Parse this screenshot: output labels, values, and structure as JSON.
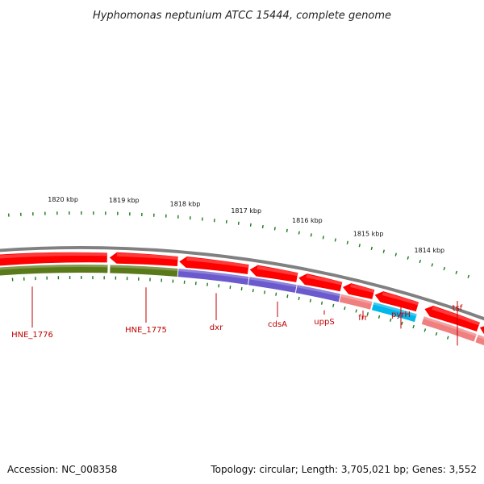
{
  "title": "Hyphomonas neptunium ATCC 15444, complete genome",
  "accession": "Accession: NC_008358",
  "topology": "Topology: circular; Length: 3,705,021 bp; Genes: 3,552",
  "kbp_ticks": [
    {
      "kb": 1820,
      "label": "1820 kbp"
    },
    {
      "kb": 1819,
      "label": "1819 kbp"
    },
    {
      "kb": 1818,
      "label": "1818 kbp"
    },
    {
      "kb": 1817,
      "label": "1817 kbp"
    },
    {
      "kb": 1816,
      "label": "1816 kbp"
    },
    {
      "kb": 1815,
      "label": "1815 kbp"
    },
    {
      "kb": 1814,
      "label": "1814 kbp"
    }
  ],
  "genes": [
    {
      "name": "HNE_1776"
    },
    {
      "name": "HNE_1775"
    },
    {
      "name": "dxr"
    },
    {
      "name": "cdsA"
    },
    {
      "name": "uppS"
    },
    {
      "name": "frr"
    },
    {
      "name": "pyrH"
    },
    {
      "name": "tsf"
    }
  ],
  "colors": {
    "cds": "#ff0000",
    "cds_light": "#f08080",
    "backbone": "#808080",
    "tick": "#1a7a1a",
    "label": "#c00000",
    "cog_green": "#5a7a1a",
    "cog_purple": "#6a5acd",
    "cog_cyan": "#00b7eb",
    "cog_pink": "#f08080"
  }
}
